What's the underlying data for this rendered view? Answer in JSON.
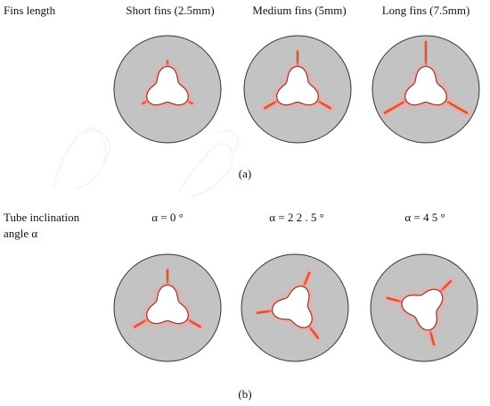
{
  "top": {
    "row_label": "Fins length",
    "columns": [
      "Short fins (2.5mm)",
      "Medium fins (5mm)",
      "Long fins (7.5mm)"
    ],
    "caption": "(a)"
  },
  "bottom": {
    "row_label_line1": "Tube      inclination",
    "row_label_line2": "angle α",
    "columns": [
      "α = 0 °",
      "α = 2 2 . 5 °",
      "α = 4 5 °"
    ],
    "caption": "(b)"
  },
  "colors": {
    "disc_fill": "#c3c3c3",
    "disc_stroke": "#333333",
    "fin_color": "#d9552f",
    "tube_fill": "#ffffff",
    "tube_stroke": "#8a3a2a",
    "glow": "#f4a6a6"
  },
  "fins": {
    "short_mm": 2.5,
    "medium_mm": 5,
    "long_mm": 7.5
  },
  "angles_deg": [
    0,
    22.5,
    45
  ]
}
